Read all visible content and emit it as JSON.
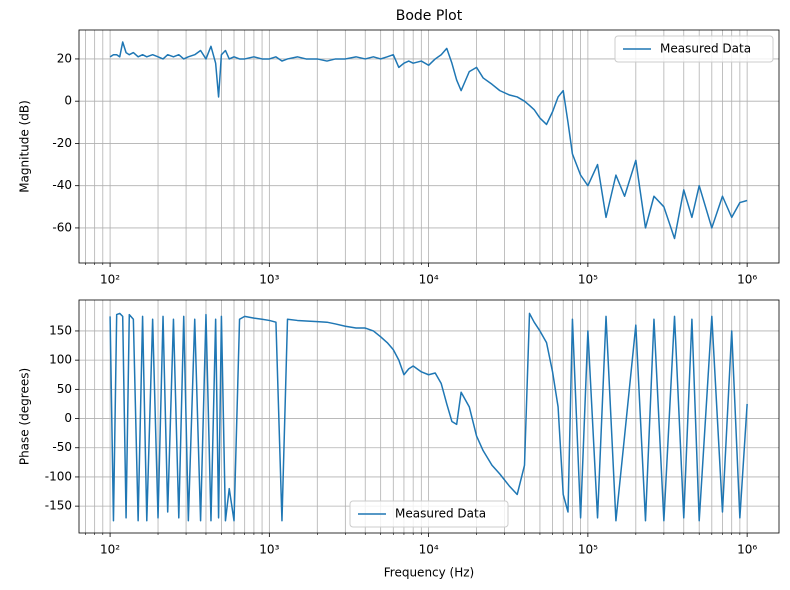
{
  "chart_data": [
    {
      "type": "line",
      "title": "Bode Plot",
      "ylabel": "Magnitude (dB)",
      "xscale": "log",
      "grid": true,
      "legend": "upper right",
      "x": [
        100,
        105,
        110,
        115,
        120,
        126,
        132,
        140,
        150,
        160,
        170,
        185,
        200,
        215,
        230,
        250,
        270,
        290,
        310,
        340,
        370,
        400,
        430,
        460,
        480,
        500,
        530,
        560,
        600,
        650,
        700,
        800,
        900,
        1000,
        1100,
        1200,
        1300,
        1500,
        1700,
        2000,
        2300,
        2600,
        3000,
        3500,
        4000,
        4500,
        5000,
        5500,
        6000,
        6500,
        7000,
        7500,
        8000,
        9000,
        10000,
        11000,
        12000,
        13000,
        14000,
        15000,
        16000,
        18000,
        20000,
        22000,
        25000,
        28000,
        32000,
        36000,
        40000,
        43000,
        46000,
        50000,
        55000,
        60000,
        65000,
        70000,
        75000,
        80000,
        90000,
        100000,
        115000,
        130000,
        150000,
        170000,
        200000,
        230000,
        260000,
        300000,
        350000,
        400000,
        450000,
        500000,
        600000,
        700000,
        800000,
        900000,
        1000000
      ],
      "series": [
        {
          "name": "Measured Data",
          "color": "#1f77b4",
          "values": [
            21,
            22,
            22,
            21,
            28,
            23,
            22,
            23,
            21,
            22,
            21,
            22,
            21,
            20,
            22,
            21,
            22,
            20,
            21,
            22,
            24,
            20,
            26,
            18,
            2,
            22,
            24,
            20,
            21,
            20,
            20,
            21,
            20,
            20,
            21,
            19,
            20,
            21,
            20,
            20,
            19,
            20,
            20,
            21,
            20,
            21,
            20,
            21,
            22,
            16,
            18,
            19,
            18,
            19,
            17,
            20,
            22,
            25,
            18,
            10,
            5,
            14,
            16,
            11,
            8,
            5,
            3,
            2,
            0,
            -2,
            -4,
            -8,
            -11,
            -5,
            2,
            5,
            -10,
            -25,
            -35,
            -40,
            -30,
            -55,
            -35,
            -45,
            -28,
            -60,
            -45,
            -50,
            -65,
            -42,
            -55,
            -40,
            -60,
            -45,
            -55,
            -48,
            -47
          ]
        }
      ],
      "xlim": [
        63.8,
        1585000
      ],
      "ylim": [
        -76.6,
        33.7
      ],
      "xticks": [
        {
          "value": 100,
          "label": "10²"
        },
        {
          "value": 1000,
          "label": "10³"
        },
        {
          "value": 10000,
          "label": "10⁴"
        },
        {
          "value": 100000,
          "label": "10⁵"
        },
        {
          "value": 1000000,
          "label": "10⁶"
        }
      ],
      "minor_xticks": [
        70,
        80,
        90,
        200,
        300,
        400,
        500,
        600,
        700,
        800,
        900,
        2000,
        3000,
        4000,
        5000,
        6000,
        7000,
        8000,
        9000,
        20000,
        30000,
        40000,
        50000,
        60000,
        70000,
        80000,
        90000,
        200000,
        300000,
        400000,
        500000,
        600000,
        700000,
        800000,
        900000
      ],
      "yticks": [
        -60,
        -40,
        -20,
        0,
        20
      ]
    },
    {
      "type": "line",
      "xlabel": "Frequency (Hz)",
      "ylabel": "Phase (degrees)",
      "xscale": "log",
      "grid": true,
      "legend": "lower center",
      "x": [
        100,
        105,
        110,
        115,
        120,
        126,
        132,
        140,
        150,
        160,
        170,
        185,
        200,
        215,
        230,
        250,
        270,
        290,
        310,
        340,
        370,
        400,
        430,
        460,
        480,
        500,
        530,
        560,
        600,
        650,
        700,
        800,
        900,
        1000,
        1100,
        1200,
        1300,
        1500,
        1700,
        2000,
        2300,
        2600,
        3000,
        3500,
        4000,
        4500,
        5000,
        5500,
        6000,
        6500,
        7000,
        7500,
        8000,
        9000,
        10000,
        11000,
        12000,
        13000,
        14000,
        15000,
        16000,
        18000,
        20000,
        22000,
        25000,
        28000,
        32000,
        36000,
        40000,
        43000,
        46000,
        50000,
        55000,
        60000,
        65000,
        70000,
        75000,
        80000,
        90000,
        100000,
        115000,
        130000,
        150000,
        170000,
        200000,
        230000,
        260000,
        300000,
        350000,
        400000,
        450000,
        500000,
        600000,
        700000,
        800000,
        900000,
        1000000
      ],
      "series": [
        {
          "name": "Measured Data",
          "color": "#1f77b4",
          "values": [
            175,
            -175,
            178,
            180,
            175,
            -170,
            178,
            170,
            -175,
            175,
            -175,
            170,
            -170,
            175,
            -160,
            170,
            -170,
            175,
            -175,
            170,
            -175,
            178,
            -175,
            170,
            -170,
            175,
            -175,
            -120,
            -175,
            170,
            175,
            172,
            170,
            168,
            165,
            -175,
            170,
            168,
            167,
            166,
            165,
            162,
            158,
            155,
            155,
            150,
            140,
            130,
            118,
            100,
            75,
            85,
            90,
            80,
            75,
            78,
            60,
            25,
            -5,
            -10,
            45,
            20,
            -30,
            -55,
            -80,
            -95,
            -115,
            -130,
            -80,
            180,
            165,
            150,
            130,
            80,
            20,
            -130,
            -160,
            170,
            -170,
            150,
            -170,
            175,
            -175,
            -30,
            160,
            -175,
            170,
            -175,
            175,
            -170,
            170,
            -175,
            175,
            -160,
            150,
            -170,
            25
          ]
        }
      ],
      "xlim": [
        63.8,
        1585000
      ],
      "ylim": [
        -196,
        203
      ],
      "xticks": [
        {
          "value": 100,
          "label": "10²"
        },
        {
          "value": 1000,
          "label": "10³"
        },
        {
          "value": 10000,
          "label": "10⁴"
        },
        {
          "value": 100000,
          "label": "10⁵"
        },
        {
          "value": 1000000,
          "label": "10⁶"
        }
      ],
      "minor_xticks": [
        70,
        80,
        90,
        200,
        300,
        400,
        500,
        600,
        700,
        800,
        900,
        2000,
        3000,
        4000,
        5000,
        6000,
        7000,
        8000,
        9000,
        20000,
        30000,
        40000,
        50000,
        60000,
        70000,
        80000,
        90000,
        200000,
        300000,
        400000,
        500000,
        600000,
        700000,
        800000,
        900000
      ],
      "yticks": [
        -150,
        -100,
        -50,
        0,
        50,
        100,
        150
      ]
    }
  ]
}
